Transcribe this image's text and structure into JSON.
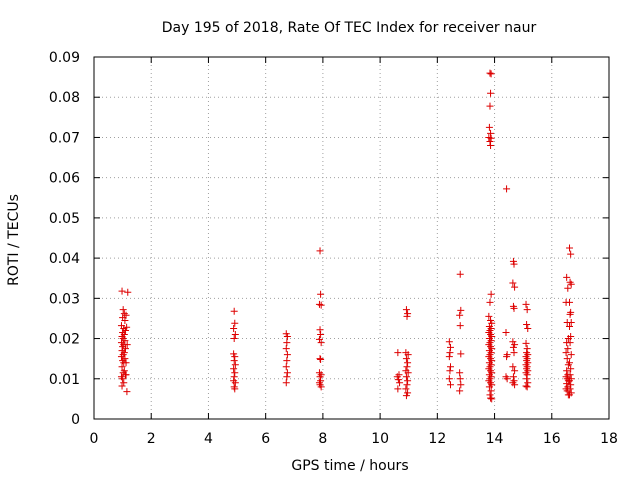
{
  "chart_data": {
    "type": "scatter",
    "title": "Day 195 of 2018, Rate Of TEC Index for receiver naur",
    "xlabel": "GPS time / hours",
    "ylabel": "ROTI / TECUs",
    "xlim": [
      0,
      18
    ],
    "ylim": [
      0,
      0.09
    ],
    "grid": true,
    "marker": "+",
    "marker_color": "#dd0000",
    "x_ticks": [
      "0",
      "2",
      "4",
      "6",
      "8",
      "10",
      "12",
      "14",
      "16",
      "18"
    ],
    "y_ticks": [
      "0",
      "0.01",
      "0.02",
      "0.03",
      "0.04",
      "0.05",
      "0.06",
      "0.07",
      "0.08",
      "0.09"
    ],
    "series": [
      {
        "name": "ROTI",
        "points": [
          [
            0.98,
            0.0318
          ],
          [
            1.02,
            0.0272
          ],
          [
            1.06,
            0.0262
          ],
          [
            1.0,
            0.0252
          ],
          [
            1.08,
            0.0245
          ],
          [
            0.96,
            0.0232
          ],
          [
            1.04,
            0.0225
          ],
          [
            1.1,
            0.022
          ],
          [
            1.0,
            0.0215
          ],
          [
            1.06,
            0.021
          ],
          [
            0.98,
            0.0205
          ],
          [
            1.02,
            0.02
          ],
          [
            1.08,
            0.0195
          ],
          [
            0.96,
            0.019
          ],
          [
            1.04,
            0.0185
          ],
          [
            1.0,
            0.018
          ],
          [
            1.1,
            0.0175
          ],
          [
            0.98,
            0.017
          ],
          [
            1.06,
            0.0165
          ],
          [
            1.02,
            0.016
          ],
          [
            0.96,
            0.0155
          ],
          [
            1.08,
            0.015
          ],
          [
            1.0,
            0.0145
          ],
          [
            1.04,
            0.014
          ],
          [
            0.98,
            0.013
          ],
          [
            1.06,
            0.012
          ],
          [
            1.02,
            0.0115
          ],
          [
            1.1,
            0.011
          ],
          [
            0.96,
            0.0105
          ],
          [
            1.0,
            0.01
          ],
          [
            1.04,
            0.009
          ],
          [
            0.98,
            0.0082
          ],
          [
            1.12,
            0.011
          ],
          [
            1.15,
            0.0068
          ],
          [
            1.12,
            0.0258
          ],
          [
            1.18,
            0.0315
          ],
          [
            1.14,
            0.0228
          ],
          [
            1.16,
            0.0185
          ],
          [
            1.12,
            0.014
          ],
          [
            4.9,
            0.0268
          ],
          [
            4.92,
            0.0238
          ],
          [
            4.88,
            0.0225
          ],
          [
            4.94,
            0.021
          ],
          [
            4.9,
            0.02
          ],
          [
            4.88,
            0.0162
          ],
          [
            4.92,
            0.0155
          ],
          [
            4.9,
            0.0145
          ],
          [
            4.94,
            0.0135
          ],
          [
            4.88,
            0.0125
          ],
          [
            4.92,
            0.0115
          ],
          [
            4.9,
            0.0105
          ],
          [
            4.88,
            0.0095
          ],
          [
            4.94,
            0.009
          ],
          [
            4.9,
            0.008
          ],
          [
            4.92,
            0.0075
          ],
          [
            6.72,
            0.0212
          ],
          [
            6.76,
            0.0205
          ],
          [
            6.74,
            0.019
          ],
          [
            6.72,
            0.0175
          ],
          [
            6.76,
            0.016
          ],
          [
            6.74,
            0.0145
          ],
          [
            6.72,
            0.013
          ],
          [
            6.76,
            0.0115
          ],
          [
            6.74,
            0.0105
          ],
          [
            6.72,
            0.009
          ],
          [
            7.9,
            0.0418
          ],
          [
            7.92,
            0.031
          ],
          [
            7.88,
            0.0285
          ],
          [
            7.94,
            0.0283
          ],
          [
            7.9,
            0.0222
          ],
          [
            7.92,
            0.021
          ],
          [
            7.88,
            0.0198
          ],
          [
            7.94,
            0.019
          ],
          [
            7.9,
            0.015
          ],
          [
            7.92,
            0.0148
          ],
          [
            7.88,
            0.0115
          ],
          [
            7.94,
            0.011
          ],
          [
            7.9,
            0.0105
          ],
          [
            7.92,
            0.0095
          ],
          [
            7.88,
            0.009
          ],
          [
            7.9,
            0.0085
          ],
          [
            7.94,
            0.008
          ],
          [
            10.62,
            0.0165
          ],
          [
            10.66,
            0.011
          ],
          [
            10.6,
            0.0105
          ],
          [
            10.64,
            0.0098
          ],
          [
            10.68,
            0.009
          ],
          [
            10.62,
            0.0075
          ],
          [
            10.92,
            0.0272
          ],
          [
            10.96,
            0.0262
          ],
          [
            10.94,
            0.0255
          ],
          [
            10.9,
            0.0165
          ],
          [
            10.98,
            0.016
          ],
          [
            10.92,
            0.015
          ],
          [
            10.96,
            0.014
          ],
          [
            10.94,
            0.013
          ],
          [
            10.9,
            0.012
          ],
          [
            10.98,
            0.0115
          ],
          [
            10.92,
            0.0105
          ],
          [
            10.96,
            0.0095
          ],
          [
            10.94,
            0.0085
          ],
          [
            10.9,
            0.0075
          ],
          [
            10.96,
            0.0065
          ],
          [
            10.92,
            0.0058
          ],
          [
            12.42,
            0.0192
          ],
          [
            12.46,
            0.0178
          ],
          [
            12.44,
            0.0165
          ],
          [
            12.42,
            0.0155
          ],
          [
            12.46,
            0.013
          ],
          [
            12.44,
            0.012
          ],
          [
            12.42,
            0.01
          ],
          [
            12.46,
            0.0085
          ],
          [
            12.8,
            0.036
          ],
          [
            12.82,
            0.027
          ],
          [
            12.78,
            0.0258
          ],
          [
            12.8,
            0.0232
          ],
          [
            12.82,
            0.0162
          ],
          [
            12.78,
            0.0115
          ],
          [
            12.8,
            0.01
          ],
          [
            12.82,
            0.0085
          ],
          [
            12.78,
            0.007
          ],
          [
            13.84,
            0.086
          ],
          [
            13.88,
            0.0858
          ],
          [
            13.86,
            0.081
          ],
          [
            13.84,
            0.0778
          ],
          [
            13.82,
            0.0725
          ],
          [
            13.86,
            0.071
          ],
          [
            13.8,
            0.07
          ],
          [
            13.88,
            0.0698
          ],
          [
            13.84,
            0.069
          ],
          [
            13.86,
            0.068
          ],
          [
            13.88,
            0.031
          ],
          [
            13.84,
            0.029
          ],
          [
            13.8,
            0.0255
          ],
          [
            13.86,
            0.0245
          ],
          [
            13.9,
            0.0238
          ],
          [
            13.82,
            0.023
          ],
          [
            13.88,
            0.0225
          ],
          [
            13.84,
            0.022
          ],
          [
            13.8,
            0.0215
          ],
          [
            13.86,
            0.021
          ],
          [
            13.9,
            0.0205
          ],
          [
            13.82,
            0.02
          ],
          [
            13.88,
            0.0195
          ],
          [
            13.84,
            0.019
          ],
          [
            13.8,
            0.0185
          ],
          [
            13.86,
            0.018
          ],
          [
            13.9,
            0.0175
          ],
          [
            13.82,
            0.017
          ],
          [
            13.88,
            0.0165
          ],
          [
            13.84,
            0.016
          ],
          [
            13.8,
            0.0155
          ],
          [
            13.86,
            0.015
          ],
          [
            13.9,
            0.0145
          ],
          [
            13.82,
            0.014
          ],
          [
            13.88,
            0.0135
          ],
          [
            13.84,
            0.013
          ],
          [
            13.8,
            0.0125
          ],
          [
            13.86,
            0.012
          ],
          [
            13.9,
            0.0115
          ],
          [
            13.82,
            0.011
          ],
          [
            13.88,
            0.0105
          ],
          [
            13.84,
            0.01
          ],
          [
            13.8,
            0.0095
          ],
          [
            13.86,
            0.009
          ],
          [
            13.9,
            0.0085
          ],
          [
            13.82,
            0.008
          ],
          [
            13.88,
            0.007
          ],
          [
            13.84,
            0.006
          ],
          [
            13.86,
            0.0052
          ],
          [
            13.9,
            0.005
          ],
          [
            14.42,
            0.0572
          ],
          [
            14.4,
            0.0215
          ],
          [
            14.44,
            0.016
          ],
          [
            14.42,
            0.0155
          ],
          [
            14.4,
            0.0105
          ],
          [
            14.44,
            0.01
          ],
          [
            14.66,
            0.0392
          ],
          [
            14.68,
            0.0385
          ],
          [
            14.64,
            0.0338
          ],
          [
            14.7,
            0.0328
          ],
          [
            14.66,
            0.028
          ],
          [
            14.68,
            0.0275
          ],
          [
            14.64,
            0.0192
          ],
          [
            14.7,
            0.0185
          ],
          [
            14.66,
            0.0178
          ],
          [
            14.68,
            0.0165
          ],
          [
            14.64,
            0.013
          ],
          [
            14.7,
            0.012
          ],
          [
            14.66,
            0.0105
          ],
          [
            14.68,
            0.0095
          ],
          [
            14.64,
            0.009
          ],
          [
            14.7,
            0.0085
          ],
          [
            15.1,
            0.0285
          ],
          [
            15.14,
            0.0272
          ],
          [
            15.12,
            0.0235
          ],
          [
            15.16,
            0.0225
          ],
          [
            15.1,
            0.0188
          ],
          [
            15.14,
            0.0175
          ],
          [
            15.12,
            0.0165
          ],
          [
            15.16,
            0.016
          ],
          [
            15.1,
            0.0155
          ],
          [
            15.14,
            0.015
          ],
          [
            15.12,
            0.0145
          ],
          [
            15.16,
            0.014
          ],
          [
            15.1,
            0.0135
          ],
          [
            15.14,
            0.013
          ],
          [
            15.12,
            0.0125
          ],
          [
            15.16,
            0.012
          ],
          [
            15.1,
            0.0115
          ],
          [
            15.14,
            0.011
          ],
          [
            15.12,
            0.01
          ],
          [
            15.16,
            0.009
          ],
          [
            15.1,
            0.0082
          ],
          [
            15.14,
            0.008
          ],
          [
            16.52,
            0.0352
          ],
          [
            16.56,
            0.0325
          ],
          [
            16.5,
            0.029
          ],
          [
            16.54,
            0.024
          ],
          [
            16.58,
            0.02
          ],
          [
            16.52,
            0.019
          ],
          [
            16.56,
            0.0175
          ],
          [
            16.5,
            0.0165
          ],
          [
            16.54,
            0.015
          ],
          [
            16.58,
            0.0135
          ],
          [
            16.52,
            0.012
          ],
          [
            16.56,
            0.011
          ],
          [
            16.5,
            0.0105
          ],
          [
            16.54,
            0.01
          ],
          [
            16.58,
            0.0095
          ],
          [
            16.52,
            0.0088
          ],
          [
            16.56,
            0.008
          ],
          [
            16.5,
            0.0075
          ],
          [
            16.54,
            0.007
          ],
          [
            16.58,
            0.006
          ],
          [
            16.62,
            0.0425
          ],
          [
            16.66,
            0.041
          ],
          [
            16.64,
            0.034
          ],
          [
            16.68,
            0.0335
          ],
          [
            16.62,
            0.029
          ],
          [
            16.66,
            0.0265
          ],
          [
            16.64,
            0.026
          ],
          [
            16.68,
            0.024
          ],
          [
            16.62,
            0.023
          ],
          [
            16.66,
            0.0205
          ],
          [
            16.64,
            0.019
          ],
          [
            16.68,
            0.016
          ],
          [
            16.62,
            0.014
          ],
          [
            16.66,
            0.0125
          ],
          [
            16.64,
            0.011
          ],
          [
            16.68,
            0.01
          ],
          [
            16.62,
            0.0095
          ],
          [
            16.66,
            0.0085
          ],
          [
            16.64,
            0.0075
          ],
          [
            16.68,
            0.0065
          ],
          [
            16.62,
            0.006
          ]
        ]
      }
    ]
  }
}
